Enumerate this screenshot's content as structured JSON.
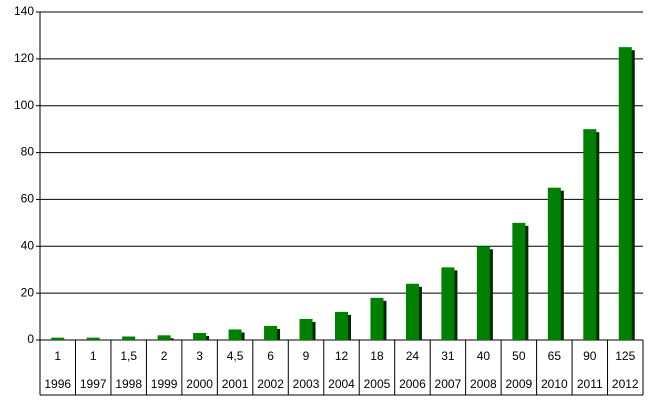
{
  "chart_data": {
    "type": "bar",
    "categories": [
      "1996",
      "1997",
      "1998",
      "1999",
      "2000",
      "2001",
      "2002",
      "2003",
      "2004",
      "2005",
      "2006",
      "2007",
      "2008",
      "2009",
      "2010",
      "2011",
      "2012"
    ],
    "values": [
      1,
      1,
      1.5,
      2,
      3,
      4.5,
      6,
      9,
      12,
      18,
      24,
      31,
      40,
      50,
      65,
      90,
      125
    ],
    "value_labels": [
      "1",
      "1",
      "1,5",
      "2",
      "3",
      "4,5",
      "6",
      "9",
      "12",
      "18",
      "24",
      "31",
      "40",
      "50",
      "65",
      "90",
      "125"
    ],
    "color": "#008000",
    "ylim": [
      0,
      140
    ],
    "yticks": [
      0,
      20,
      40,
      60,
      80,
      100,
      120,
      140
    ],
    "grid": true
  }
}
